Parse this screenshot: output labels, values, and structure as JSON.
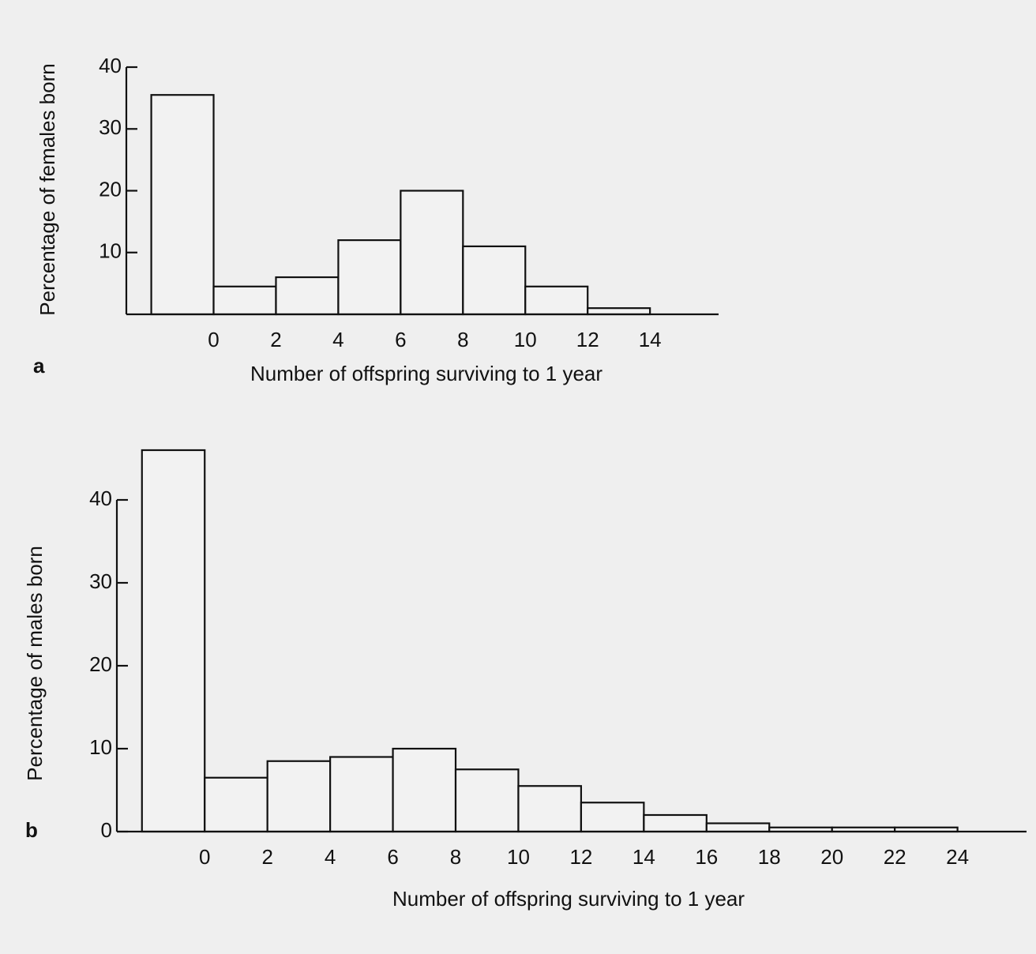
{
  "chart_data": [
    {
      "type": "histogram",
      "panel": "a",
      "ylabel": "Percentage of females born",
      "xlabel": "Number of offspring surviving to 1 year",
      "bins": [
        -2,
        0,
        2,
        4,
        6,
        8,
        10,
        12,
        14
      ],
      "values": [
        35.5,
        4.5,
        6,
        12,
        20,
        11,
        4.5,
        1
      ],
      "xlim": [
        -2.8,
        16.2
      ],
      "xticks": [
        0,
        2,
        4,
        6,
        8,
        10,
        12,
        14
      ],
      "ylim": [
        0,
        40
      ],
      "yticks": [
        10,
        20,
        30,
        40
      ],
      "color": "#f2f2f2"
    },
    {
      "type": "histogram",
      "panel": "b",
      "ylabel": "Percentage of males born",
      "xlabel": "Number of offspring surviving to 1 year",
      "bins": [
        -2,
        0,
        2,
        4,
        6,
        8,
        10,
        12,
        14,
        16,
        18,
        20,
        22,
        24
      ],
      "values": [
        46,
        6.5,
        8.5,
        9,
        10,
        7.5,
        5.5,
        3.5,
        2,
        1,
        0.5,
        0.5,
        0.5
      ],
      "xlim": [
        -2.8,
        26.2
      ],
      "xticks": [
        0,
        2,
        4,
        6,
        8,
        10,
        12,
        14,
        16,
        18,
        20,
        22,
        24
      ],
      "ylim": [
        0,
        47
      ],
      "yticks": [
        0,
        10,
        20,
        30,
        40
      ],
      "color": "#f2f2f2"
    }
  ]
}
